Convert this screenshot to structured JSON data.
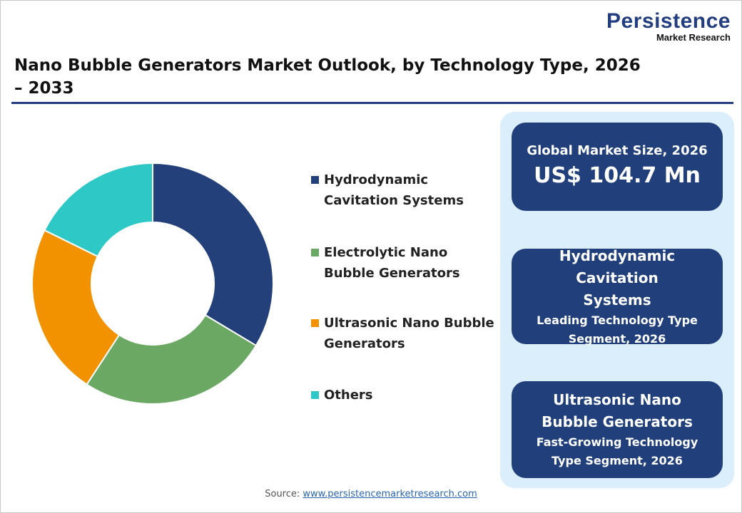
{
  "logo": {
    "name": "Persistence",
    "tagline": "Market Research"
  },
  "title": "Nano Bubble Generators Market Outlook, by Technology Type, 2026 – 2033",
  "chart_data": {
    "type": "pie",
    "donut": true,
    "title": "Nano Bubble Generators Market Outlook, by Technology Type, 2026 – 2033",
    "categories": [
      "Hydrodynamic Cavitation Systems",
      "Electrolytic Nano Bubble Generators",
      "Ultrasonic Nano Bubble Generators",
      "Others"
    ],
    "values": [
      33.6,
      25.6,
      23.1,
      17.7
    ],
    "colors": [
      "#23407a",
      "#6aa864",
      "#f39200",
      "#2ec9c6"
    ],
    "legend_position": "right"
  },
  "cards": [
    {
      "label": "Global Market Size, 2026",
      "value": "US$ 104.7 Mn"
    },
    {
      "label": "Hydrodynamic Cavitation Systems",
      "sub": "Leading Technology Type Segment, 2026"
    },
    {
      "label": "Ultrasonic Nano Bubble Generators",
      "sub": "Fast-Growing Technology Type Segment, 2026"
    }
  ],
  "source": {
    "prefix": "Source: ",
    "link": "www.persistencemarketresearch.com"
  }
}
